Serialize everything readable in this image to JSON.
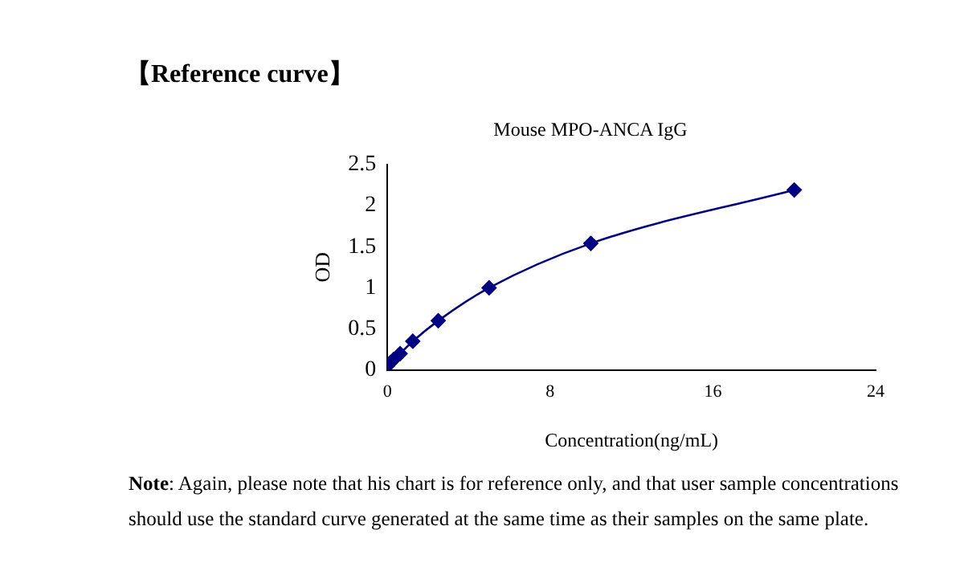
{
  "chart_data": {
    "type": "scatter",
    "title": "Mouse MPO-ANCA IgG",
    "xlabel": "Concentration(ng/mL)",
    "ylabel": "OD",
    "annotations": [
      "【Reference curve】",
      "Note: Again, please note that his chart is for reference only, and that user sample concentrations should use the standard curve generated at the same time as their samples on the same plate."
    ],
    "series": [
      {
        "type": "line",
        "color": "#000080",
        "x": [
          0,
          0.156,
          0.3125,
          0.625,
          1.25,
          2.5,
          5,
          10,
          20
        ],
        "values": [
          0.05,
          0.09,
          0.13,
          0.2,
          0.35,
          0.6,
          1.0,
          1.54,
          2.19
        ]
      }
    ],
    "xlim": [
      0,
      24
    ],
    "xticks": [
      0,
      8,
      16,
      24
    ],
    "ylim": [
      0,
      2.5
    ],
    "yticks": [
      0,
      0.5,
      1,
      1.5,
      2,
      2.5
    ],
    "grid": false,
    "legend": false,
    "marker": "diamond",
    "line_style": "solid"
  }
}
